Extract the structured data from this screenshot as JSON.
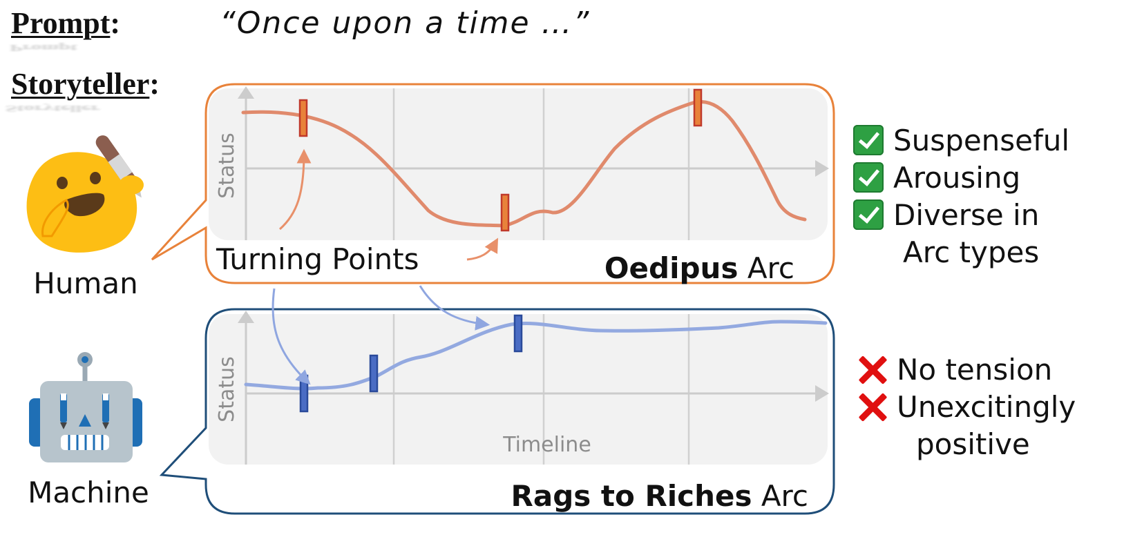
{
  "labels": {
    "prompt": "Prompt",
    "prompt_colon": ":",
    "prompt_text": "“Once upon a time …”",
    "storyteller": "Storyteller",
    "storyteller_colon": ":"
  },
  "agents": {
    "human": "Human",
    "machine": "Machine"
  },
  "panels": {
    "top": {
      "arc_name": "Oedipus",
      "arc_suffix": " Arc",
      "axis_y": "Status",
      "turning_points_label": "Turning Points",
      "curve_color": "#e08a6c",
      "marker_color": "#c0392b",
      "border_color": "#e8823a"
    },
    "bottom": {
      "arc_name": "Rags to Riches",
      "arc_suffix": " Arc",
      "axis_y": "Status",
      "axis_x": "Timeline",
      "curve_color": "#93a9e0",
      "marker_color": "#3a5ab0",
      "border_color": "#1f4e79"
    }
  },
  "pros": {
    "items": [
      "Suspenseful",
      "Arousing",
      "Diverse in",
      "Arc types"
    ],
    "icon": "check-icon",
    "color": "#2ea043"
  },
  "cons": {
    "items": [
      "No tension",
      "Unexcitingly",
      "positive"
    ],
    "icon": "cross-icon",
    "color": "#e01010"
  }
}
